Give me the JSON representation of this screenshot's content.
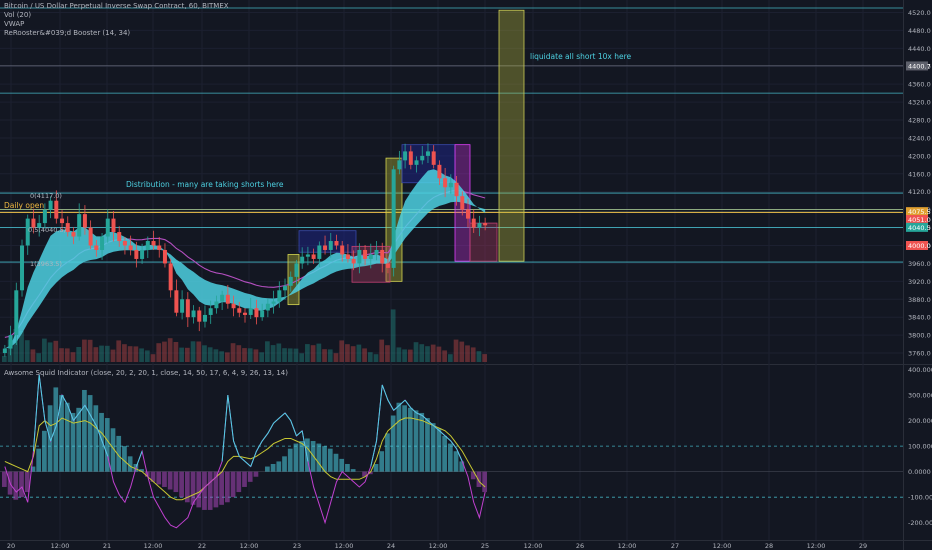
{
  "header": {
    "symbol_line": "Bitcoin / US Dollar Perpetual Inverse Swap Contract, 60, BITMEX",
    "indicators": [
      "Vol (20)",
      "VWAP",
      "ReRooster&#039;d Booster (14, 34)"
    ]
  },
  "sub_indicator": {
    "label": "Awsome Squid Indicator (close, 20, 2, 20, 1, close, 14, 50, 17, 6, 4, 9, 26, 13, 14)"
  },
  "annotations": {
    "liquidate": "liquidate all short 10x here",
    "distribution": "Distribution - many are taking shorts here",
    "daily_open": "Daily open",
    "fib_0": "0(4117.0)",
    "fib_05": "0.5(4040.5)",
    "fib_1": "1(3963.5)"
  },
  "colors": {
    "background": "#131722",
    "up_candle": "#26a69a",
    "down_candle": "#ef5350",
    "ribbon": "#4dd0e1",
    "envelope": "#b44fc0",
    "horizontal_lines": "#4dd0e1",
    "daily_open": "#f0b840",
    "yellow_box": "#c8c832",
    "navy_box": "#1a237e",
    "magenta_box": "#e040fb"
  },
  "chart_data": [
    {
      "type": "candlestick",
      "title": "",
      "y_axis_ticks": [
        "4520.0",
        "4480.0",
        "4440.0",
        "4400.0",
        "4360.0",
        "4320.0",
        "4280.0",
        "4240.0",
        "4200.0",
        "4160.0",
        "4120.0",
        "4080.0",
        "4040.0",
        "4000.0",
        "3960.0",
        "3920.0",
        "3880.0",
        "3840.0",
        "3800.0",
        "3760.0"
      ],
      "ylim": [
        3740,
        4530
      ],
      "price_labels": [
        "4400.7",
        "4075.5",
        "4051.0",
        "4040.5",
        "4000.0"
      ],
      "x_axis_ticks": [
        "20",
        "12:00",
        "21",
        "12:00",
        "22",
        "12:00",
        "23",
        "12:00",
        "24",
        "12:00",
        "25",
        "12:00",
        "26",
        "12:00",
        "27",
        "12:00",
        "28",
        "12:00",
        "29"
      ],
      "horizontal_levels": [
        4530,
        4401,
        4340,
        4117,
        4080,
        4074,
        4040,
        3963
      ],
      "daily_open_level": 4074,
      "close_series": [
        3770,
        3800,
        3900,
        4000,
        4060,
        4040,
        4050,
        4080,
        4100,
        4060,
        4050,
        4030,
        4020,
        4070,
        4040,
        4000,
        3990,
        4020,
        4060,
        4030,
        4010,
        4000,
        3990,
        3970,
        3990,
        4010,
        4000,
        3990,
        3960,
        3900,
        3850,
        3880,
        3840,
        3855,
        3830,
        3845,
        3860,
        3875,
        3890,
        3870,
        3860,
        3850,
        3845,
        3860,
        3840,
        3855,
        3870,
        3875,
        3900,
        3910,
        3930,
        3960,
        3975,
        3980,
        3970,
        4000,
        3990,
        4010,
        4000,
        3980,
        3970,
        3960,
        3990,
        3970,
        3980,
        3990,
        3960,
        3950,
        4170,
        4190,
        4210,
        4180,
        4190,
        4200,
        4210,
        4180,
        4150,
        4130,
        4140,
        4110,
        4080,
        4060,
        4040,
        4050,
        4045
      ],
      "volume_max_pct_axis": true,
      "shaded_boxes": [
        {
          "kind": "yellow",
          "x0": 288,
          "x1": 299,
          "y0": 3980,
          "y1": 3868
        },
        {
          "kind": "navy",
          "x0": 299,
          "x1": 356,
          "y0": 4033,
          "y1": 3985
        },
        {
          "kind": "yellow",
          "x0": 386,
          "x1": 402,
          "y0": 4195,
          "y1": 3920
        },
        {
          "kind": "navy",
          "x0": 402,
          "x1": 455,
          "y0": 4225,
          "y1": 4140
        },
        {
          "kind": "magenta",
          "x0": 455,
          "x1": 470,
          "y0": 4225,
          "y1": 3965
        },
        {
          "kind": "pink",
          "x0": 352,
          "x1": 390,
          "y0": 3998,
          "y1": 3918
        },
        {
          "kind": "pink",
          "x0": 470,
          "x1": 497,
          "y0": 4050,
          "y1": 3965
        },
        {
          "kind": "yellow_tall",
          "x0": 499,
          "x1": 524,
          "y0": 4525,
          "y1": 3965
        }
      ]
    },
    {
      "type": "area",
      "title": "",
      "y_axis_ticks": [
        "400.0000",
        "300.0000",
        "200.0000",
        "100.0000",
        "0.0000",
        "-100.0000",
        "-200.0000"
      ],
      "ylim": [
        -260,
        410
      ],
      "reference_levels": [
        100,
        -100
      ],
      "histogram": [
        -60,
        -90,
        -110,
        -100,
        -80,
        20,
        90,
        160,
        260,
        330,
        300,
        270,
        230,
        250,
        320,
        300,
        260,
        230,
        210,
        170,
        140,
        100,
        60,
        30,
        10,
        -20,
        -40,
        -50,
        -60,
        -70,
        -80,
        -100,
        -120,
        -130,
        -140,
        -150,
        -150,
        -140,
        -130,
        -120,
        -100,
        -80,
        -60,
        -40,
        -20,
        0,
        20,
        30,
        40,
        60,
        90,
        110,
        120,
        130,
        120,
        110,
        100,
        90,
        70,
        50,
        30,
        10,
        0,
        -20,
        -10,
        30,
        80,
        150,
        220,
        270,
        260,
        250,
        240,
        230,
        210,
        190,
        170,
        140,
        110,
        80,
        40,
        0,
        -30,
        -60,
        -80
      ],
      "fast_line": [
        20,
        -50,
        -80,
        -60,
        -120,
        80,
        380,
        200,
        120,
        180,
        300,
        260,
        200,
        230,
        260,
        220,
        180,
        120,
        60,
        -40,
        -90,
        -120,
        -60,
        20,
        80,
        -20,
        -100,
        -140,
        -180,
        -210,
        -220,
        -200,
        -180,
        -120,
        -90,
        -60,
        -40,
        -20,
        40,
        300,
        120,
        60,
        40,
        20,
        80,
        120,
        150,
        190,
        210,
        230,
        200,
        140,
        160,
        40,
        -60,
        -130,
        -200,
        -120,
        -40,
        0,
        -20,
        -40,
        -60,
        -40,
        20,
        120,
        340,
        280,
        240,
        260,
        280,
        250,
        230,
        220,
        200,
        180,
        160,
        140,
        120,
        90,
        40,
        -20,
        -120,
        -180,
        -80
      ],
      "slow_line": [
        40,
        30,
        20,
        10,
        0,
        60,
        180,
        200,
        180,
        190,
        210,
        200,
        190,
        195,
        200,
        190,
        170,
        150,
        120,
        90,
        60,
        40,
        20,
        10,
        0,
        -20,
        -40,
        -60,
        -80,
        -100,
        -110,
        -110,
        -100,
        -90,
        -80,
        -60,
        -40,
        -20,
        0,
        40,
        60,
        60,
        55,
        50,
        60,
        75,
        90,
        110,
        120,
        130,
        130,
        120,
        110,
        90,
        60,
        30,
        0,
        -20,
        -30,
        -30,
        -30,
        -30,
        -30,
        -20,
        0,
        50,
        120,
        160,
        180,
        200,
        210,
        210,
        205,
        200,
        190,
        180,
        170,
        160,
        140,
        110,
        80,
        40,
        0,
        -40,
        -60
      ]
    }
  ]
}
